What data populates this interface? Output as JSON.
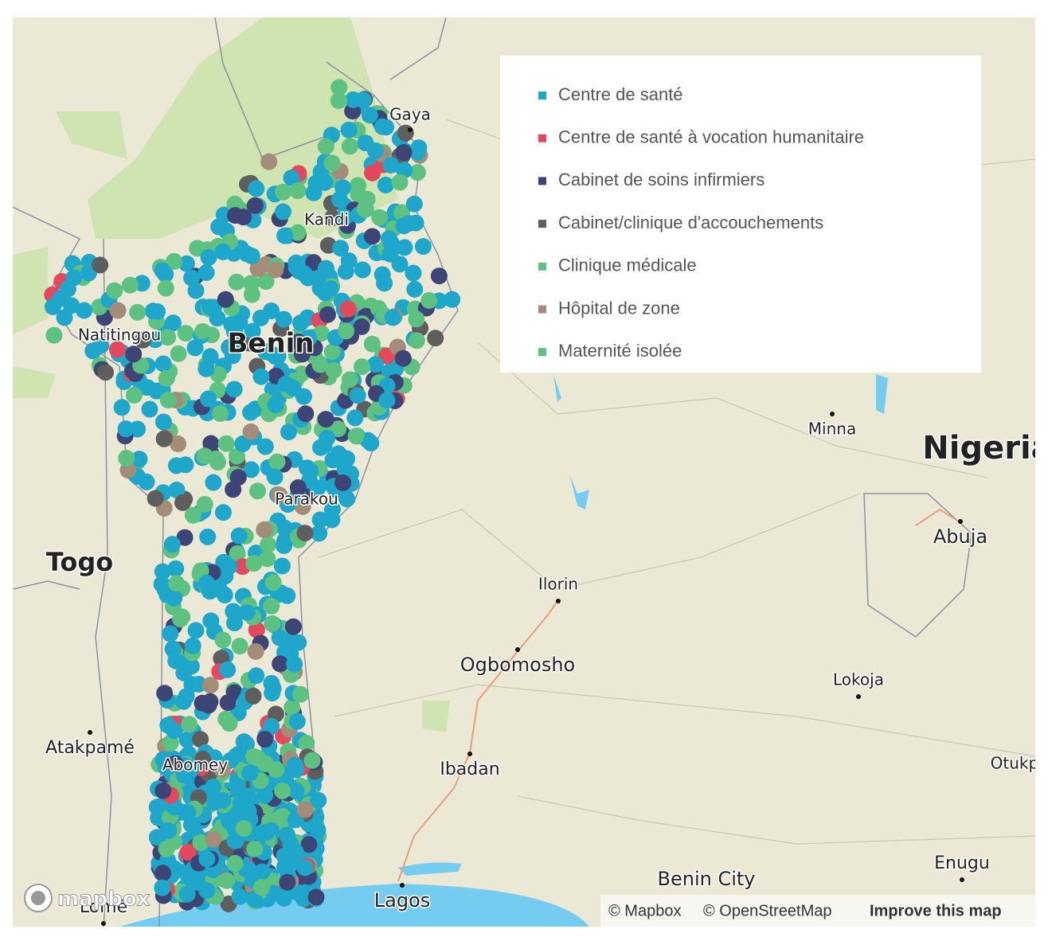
{
  "legend": {
    "items": [
      {
        "label": "Centre de santé",
        "color": "#1fa6cb"
      },
      {
        "label": "Centre de santé à vocation humanitaire",
        "color": "#e5485c"
      },
      {
        "label": "Cabinet de soins infirmiers",
        "color": "#3c4576"
      },
      {
        "label": "Cabinet/clinique d'accouchements",
        "color": "#5e5e5e"
      },
      {
        "label": "Clinique médicale",
        "color": "#5cc181"
      },
      {
        "label": "Hôpital de zone",
        "color": "#a38d79"
      },
      {
        "label": "Maternité isolée",
        "color": "#5cc181"
      }
    ]
  },
  "places": [
    "Gaya",
    "Kandi",
    "Natitingou",
    "Benin",
    "Parakou",
    "Togo",
    "Atakpamé",
    "Abomey",
    "Lomé",
    "Lagos",
    "Ibadan",
    "Ogbomosho",
    "Ilorin",
    "Minna",
    "Nigeria",
    "Abuja",
    "Lokoja",
    "Benin City",
    "Enugu",
    "Otukpo"
  ],
  "logo": "mapbox",
  "attribution": [
    "© Mapbox",
    "© OpenStreetMap",
    "Improve this map"
  ]
}
